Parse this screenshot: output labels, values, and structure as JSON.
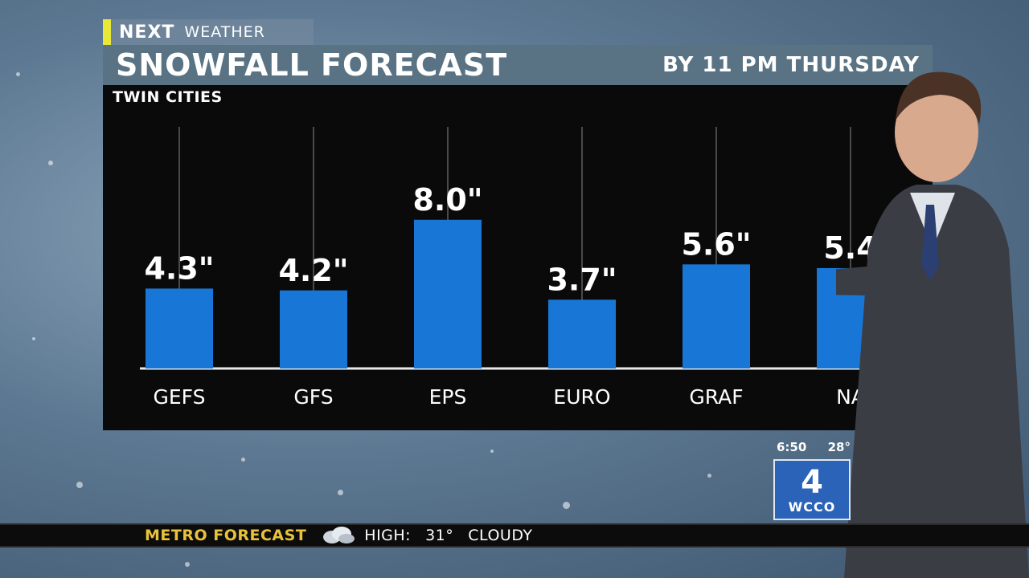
{
  "brand": {
    "next": "NEXT",
    "weather": "WEATHER",
    "accent_color": "#e8e83a"
  },
  "title": {
    "main": "SNOWFALL FORECAST",
    "sub": "BY 11 PM THURSDAY"
  },
  "region": "TWIN CITIES",
  "chart_data": {
    "type": "bar",
    "categories": [
      "GEFS",
      "GFS",
      "EPS",
      "EURO",
      "GRAF",
      "NA"
    ],
    "values": [
      4.3,
      4.2,
      8.0,
      3.7,
      5.6,
      5.4
    ],
    "value_labels": [
      "4.3\"",
      "4.2\"",
      "8.0\"",
      "3.7\"",
      "5.6\"",
      "5.4"
    ],
    "unit": "inches",
    "ylim": [
      0,
      13
    ],
    "bar_color": "#1877d6",
    "grid": true
  },
  "station": {
    "time": "6:50",
    "temp": "28°",
    "number": "4",
    "call": "WCCO",
    "color": "#2a63b8"
  },
  "ticker": {
    "label": "METRO FORECAST",
    "icon": "cloud-icon",
    "high_label": "HIGH:",
    "high_value": "31°",
    "condition": "CLOUDY"
  }
}
